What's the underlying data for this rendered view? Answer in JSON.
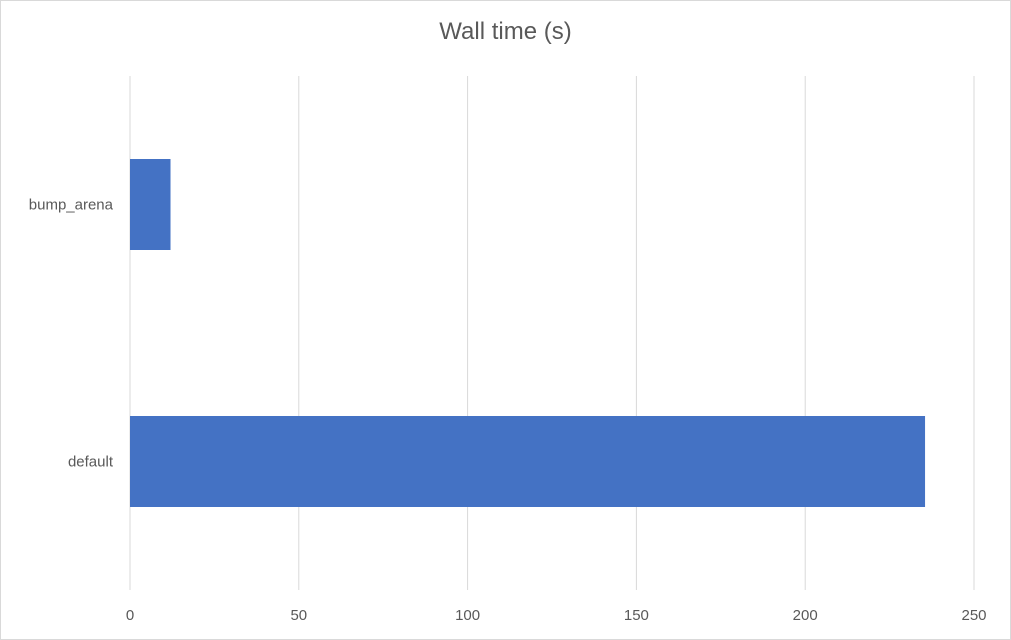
{
  "chart_data": {
    "type": "bar",
    "orientation": "horizontal",
    "title": "Wall time (s)",
    "xlabel": "",
    "ylabel": "",
    "categories": [
      "bump_arena",
      "default"
    ],
    "series": [
      {
        "values": [
          12,
          235.5
        ],
        "color": "#4472c4"
      }
    ],
    "xlim": [
      0,
      250
    ],
    "xticks": [
      0,
      50,
      100,
      150,
      200,
      250
    ],
    "grid": "vertical",
    "legend": "none"
  }
}
